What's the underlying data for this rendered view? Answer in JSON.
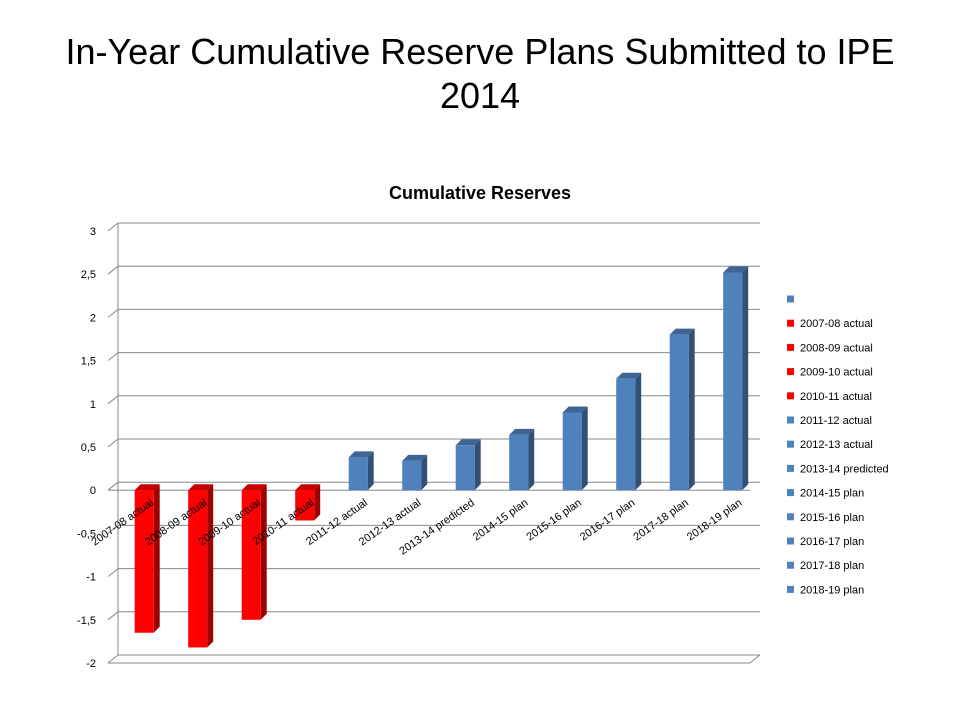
{
  "slide": {
    "title_line1": "In-Year Cumulative Reserve Plans Submitted to IPE",
    "title_line2": "2014"
  },
  "chart_data": {
    "type": "bar",
    "title": "Cumulative Reserves",
    "xlabel": "",
    "ylabel": "",
    "ylim": [
      -2,
      3
    ],
    "yticks": [
      3,
      2.5,
      2,
      1.5,
      1,
      0.5,
      0,
      -0.5,
      -1,
      -1.5,
      -2
    ],
    "ytick_labels": [
      "3",
      "2,5",
      "2",
      "1,5",
      "1",
      "0,5",
      "0",
      "-0,5",
      "-1",
      "-1,5",
      "-2"
    ],
    "grid": true,
    "legend_position": "right",
    "categories": [
      "2007-08 actual",
      "2008-09 actual",
      "2009-10 actual",
      "2010-11 actual",
      "2011-12 actual",
      "2012-13 actual",
      "2013-14 predicted",
      "2014-15 plan",
      "2015-16 plan",
      "2016-17 plan",
      "2017-18 plan",
      "2018-19 plan"
    ],
    "values": [
      -1.65,
      -1.82,
      -1.5,
      -0.35,
      0.38,
      0.34,
      0.52,
      0.64,
      0.9,
      1.29,
      1.8,
      2.52
    ],
    "bar_colors": [
      "#ff0000",
      "#ff0000",
      "#ff0000",
      "#ff0000",
      "#4f81bd",
      "#4f81bd",
      "#4f81bd",
      "#4f81bd",
      "#4f81bd",
      "#4f81bd",
      "#4f81bd",
      "#4f81bd"
    ],
    "legend": [
      {
        "label": "",
        "color": "#4f81bd"
      },
      {
        "label": "2007-08 actual",
        "color": "#ff0000"
      },
      {
        "label": "2008-09 actual",
        "color": "#ff0000"
      },
      {
        "label": "2009-10 actual",
        "color": "#ff0000"
      },
      {
        "label": "2010-11 actual",
        "color": "#ff0000"
      },
      {
        "label": "2011-12 actual",
        "color": "#4f81bd"
      },
      {
        "label": "2012-13 actual",
        "color": "#4f81bd"
      },
      {
        "label": "2013-14 predicted",
        "color": "#4f81bd"
      },
      {
        "label": "2014-15 plan",
        "color": "#4f81bd"
      },
      {
        "label": "2015-16 plan",
        "color": "#4f81bd"
      },
      {
        "label": "2016-17 plan",
        "color": "#4f81bd"
      },
      {
        "label": "2017-18 plan",
        "color": "#4f81bd"
      },
      {
        "label": "2018-19 plan",
        "color": "#4f81bd"
      }
    ]
  }
}
